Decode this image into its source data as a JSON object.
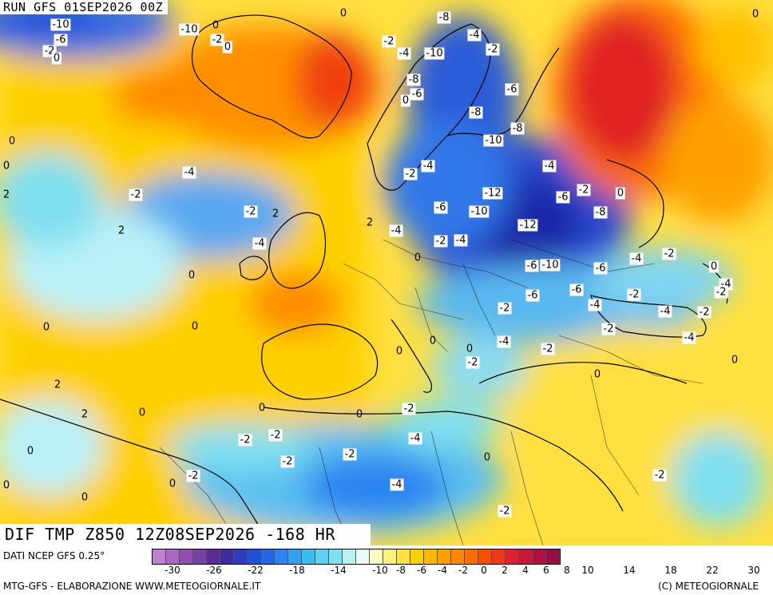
{
  "header": {
    "run": "RUN GFS 01SEP2026 00Z"
  },
  "footer": {
    "field": "DIF TMP Z850 12Z08SEP2026 -168 HR",
    "source": "DATI NCEP GFS 0.25°",
    "credit": "MTG-GFS - ELABORAZIONE WWW.METEOGIORNALE.IT",
    "copyright": "(C) METEOGIORNALE"
  },
  "legend": {
    "colors": [
      "#c080d0",
      "#a868c0",
      "#9050b0",
      "#7840a0",
      "#5a2c98",
      "#3c2ca0",
      "#2c3cc0",
      "#2050d8",
      "#2468e8",
      "#2c84f0",
      "#30a0f0",
      "#3cbcf0",
      "#5ad2f0",
      "#80e0f0",
      "#b8f0f8",
      "#e8fcff",
      "#fffcc0",
      "#fff080",
      "#ffe040",
      "#ffd000",
      "#ffb800",
      "#ffa000",
      "#ff8800",
      "#ff6c00",
      "#f85000",
      "#f03818",
      "#e02030",
      "#c81838",
      "#b01040",
      "#980c48"
    ],
    "tick_labels": [
      "-30",
      "-26",
      "-22",
      "-18",
      "-14",
      "-10",
      "-8",
      "-6",
      "-4",
      "-2",
      "0",
      "2",
      "4",
      "6",
      "8",
      "10",
      "14",
      "18",
      "22",
      "30"
    ]
  },
  "isolines": [
    {
      "t": "-10",
      "c": "w"
    },
    {
      "t": "-6",
      "c": "w"
    },
    {
      "t": "-2",
      "c": "w"
    },
    {
      "t": "0",
      "c": "w"
    },
    {
      "t": "-10",
      "c": "w"
    },
    {
      "t": "-2",
      "c": "w"
    },
    {
      "t": "0",
      "c": "w"
    },
    {
      "t": "-8",
      "c": "w"
    },
    {
      "t": "-4",
      "c": "w"
    },
    {
      "t": "-2",
      "c": "w"
    },
    {
      "t": "-4",
      "c": "w"
    },
    {
      "t": "-10",
      "c": "w"
    },
    {
      "t": "-2",
      "c": "w"
    },
    {
      "t": "-8",
      "c": "w"
    },
    {
      "t": "-6",
      "c": "w"
    },
    {
      "t": "0",
      "c": "w"
    },
    {
      "t": "-6",
      "c": "w"
    },
    {
      "t": "-8",
      "c": "w"
    },
    {
      "t": "-8",
      "c": "w"
    },
    {
      "t": "-10",
      "c": "w"
    },
    {
      "t": "-2",
      "c": "w"
    },
    {
      "t": "-4",
      "c": "w"
    },
    {
      "t": "-4",
      "c": "w"
    },
    {
      "t": "-12",
      "c": "w"
    },
    {
      "t": "-6",
      "c": "w"
    },
    {
      "t": "-2",
      "c": "w"
    },
    {
      "t": "0",
      "c": "w"
    },
    {
      "t": "-6",
      "c": "w"
    },
    {
      "t": "-10",
      "c": "w"
    },
    {
      "t": "-8",
      "c": "w"
    },
    {
      "t": "-12",
      "c": "w"
    },
    {
      "t": "-4",
      "c": "w"
    },
    {
      "t": "-2",
      "c": "w"
    },
    {
      "t": "-4",
      "c": "w"
    },
    {
      "t": "-6",
      "c": "w"
    },
    {
      "t": "-10",
      "c": "w"
    },
    {
      "t": "-6",
      "c": "w"
    },
    {
      "t": "-4",
      "c": "w"
    },
    {
      "t": "-2",
      "c": "w"
    },
    {
      "t": "0",
      "c": "w"
    },
    {
      "t": "-6",
      "c": "w"
    },
    {
      "t": "-4",
      "c": "w"
    },
    {
      "t": "-2",
      "c": "w"
    },
    {
      "t": "-2",
      "c": "w"
    },
    {
      "t": "-4",
      "c": "w"
    },
    {
      "t": "-2",
      "c": "w"
    },
    {
      "t": "-2",
      "c": "w"
    },
    {
      "t": "-4",
      "c": "w"
    },
    {
      "t": "-2",
      "c": "w"
    },
    {
      "t": "-4",
      "c": "w"
    },
    {
      "t": "-2",
      "c": "w"
    },
    {
      "t": "-2",
      "c": "w"
    },
    {
      "t": "-4",
      "c": "w"
    },
    {
      "t": "-2",
      "c": "w"
    },
    {
      "t": "-2",
      "c": "w"
    },
    {
      "t": "-2",
      "c": "w"
    },
    {
      "t": "-2",
      "c": "w"
    },
    {
      "t": "-2",
      "c": "w"
    },
    {
      "t": "-4",
      "c": "w"
    },
    {
      "t": "-2",
      "c": "w"
    },
    {
      "t": "-6",
      "c": "w"
    },
    {
      "t": "-4",
      "c": "w"
    },
    {
      "t": "-2",
      "c": "w"
    },
    {
      "t": "-2",
      "c": "w"
    },
    {
      "t": "-4",
      "c": "w"
    },
    {
      "t": "-4",
      "c": "w"
    },
    {
      "t": "-2",
      "c": "w"
    },
    {
      "t": "-2",
      "c": "w"
    },
    {
      "t": "0",
      "c": "p"
    },
    {
      "t": "0",
      "c": "p"
    },
    {
      "t": "0",
      "c": "p"
    },
    {
      "t": "0",
      "c": "p"
    },
    {
      "t": "0",
      "c": "p"
    },
    {
      "t": "2",
      "c": "p"
    },
    {
      "t": "2",
      "c": "p"
    },
    {
      "t": "2",
      "c": "p"
    },
    {
      "t": "2",
      "c": "p"
    },
    {
      "t": "0",
      "c": "p"
    },
    {
      "t": "2",
      "c": "p"
    },
    {
      "t": "0",
      "c": "p"
    },
    {
      "t": "2",
      "c": "p"
    },
    {
      "t": "0",
      "c": "p"
    },
    {
      "t": "0",
      "c": "p"
    },
    {
      "t": "0",
      "c": "p"
    },
    {
      "t": "0",
      "c": "p"
    },
    {
      "t": "0",
      "c": "p"
    },
    {
      "t": "0",
      "c": "p"
    },
    {
      "t": "0",
      "c": "p"
    },
    {
      "t": "0",
      "c": "p"
    },
    {
      "t": "0",
      "c": "p"
    },
    {
      "t": "0",
      "c": "p"
    },
    {
      "t": "0",
      "c": "p"
    },
    {
      "t": "0",
      "c": "p"
    },
    {
      "t": "0",
      "c": "p"
    },
    {
      "t": "0",
      "c": "p"
    },
    {
      "t": "0",
      "c": "p"
    }
  ]
}
